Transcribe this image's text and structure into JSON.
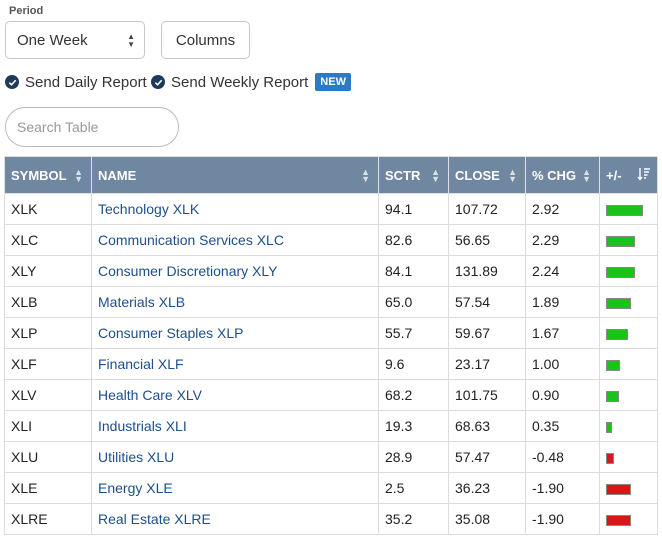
{
  "period": {
    "label": "Period",
    "value": "One Week"
  },
  "columns_button": "Columns",
  "reports": {
    "daily": "Send Daily Report",
    "weekly": "Send Weekly Report",
    "new_badge": "NEW"
  },
  "search": {
    "placeholder": "Search Table"
  },
  "table": {
    "headers": [
      "SYMBOL",
      "NAME",
      "SCTR",
      "CLOSE",
      "% CHG",
      "+/-"
    ],
    "rows": [
      {
        "symbol": "XLK",
        "name": "Technology XLK",
        "sctr": "94.1",
        "close": "107.72",
        "chg": "2.92"
      },
      {
        "symbol": "XLC",
        "name": "Communication Services XLC",
        "sctr": "82.6",
        "close": "56.65",
        "chg": "2.29"
      },
      {
        "symbol": "XLY",
        "name": "Consumer Discretionary XLY",
        "sctr": "84.1",
        "close": "131.89",
        "chg": "2.24"
      },
      {
        "symbol": "XLB",
        "name": "Materials XLB",
        "sctr": "65.0",
        "close": "57.54",
        "chg": "1.89"
      },
      {
        "symbol": "XLP",
        "name": "Consumer Staples XLP",
        "sctr": "55.7",
        "close": "59.67",
        "chg": "1.67"
      },
      {
        "symbol": "XLF",
        "name": "Financial XLF",
        "sctr": "9.6",
        "close": "23.17",
        "chg": "1.00"
      },
      {
        "symbol": "XLV",
        "name": "Health Care XLV",
        "sctr": "68.2",
        "close": "101.75",
        "chg": "0.90"
      },
      {
        "symbol": "XLI",
        "name": "Industrials XLI",
        "sctr": "19.3",
        "close": "68.63",
        "chg": "0.35"
      },
      {
        "symbol": "XLU",
        "name": "Utilities XLU",
        "sctr": "28.9",
        "close": "57.47",
        "chg": "-0.48"
      },
      {
        "symbol": "XLE",
        "name": "Energy XLE",
        "sctr": "2.5",
        "close": "36.23",
        "chg": "-1.90"
      },
      {
        "symbol": "XLRE",
        "name": "Real Estate XLRE",
        "sctr": "35.2",
        "close": "35.08",
        "chg": "-1.90"
      }
    ]
  },
  "colors": {
    "header_bg": "#6f87a0",
    "positive": "#18c418",
    "negative": "#d81818",
    "link": "#1d4f8b",
    "badge": "#2a7bc4"
  }
}
